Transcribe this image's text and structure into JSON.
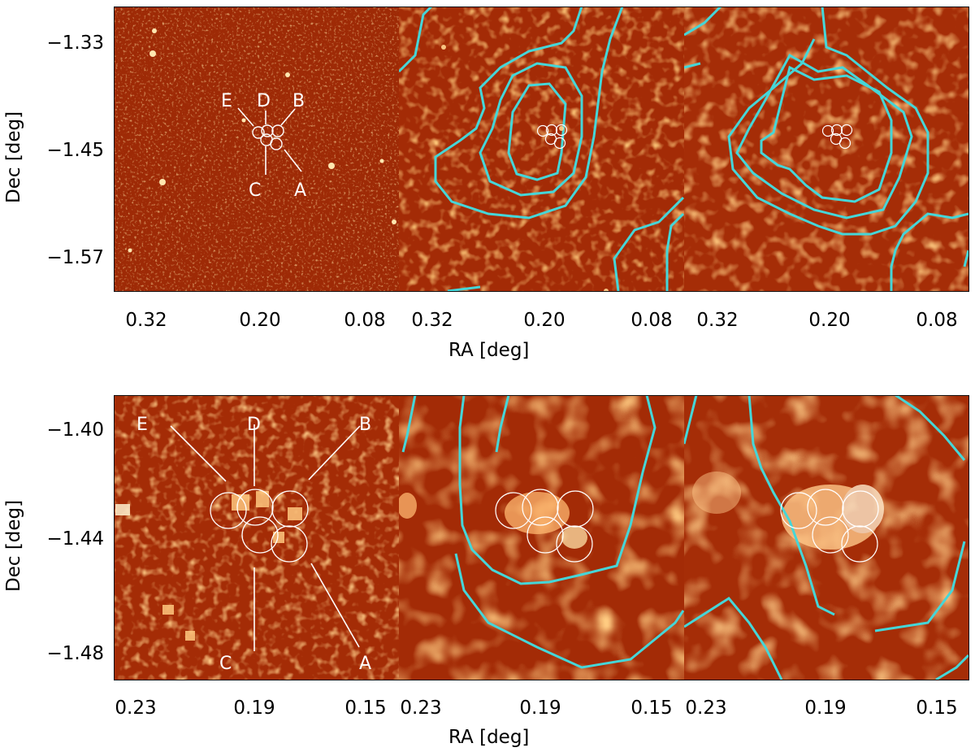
{
  "figure": {
    "top_row": {
      "dec_ticks": [
        "−1.33",
        "−1.45",
        "−1.57"
      ],
      "ra_ticks": [
        "0.32",
        "0.20",
        "0.08"
      ],
      "ra_label": "RA [deg]",
      "dec_label": "Dec [deg]",
      "source_labels": [
        "E",
        "D",
        "B",
        "C",
        "A"
      ]
    },
    "bottom_row": {
      "dec_ticks": [
        "−1.40",
        "−1.44",
        "−1.48"
      ],
      "ra_ticks": [
        "0.23",
        "0.19",
        "0.15"
      ],
      "ra_label": "RA [deg]",
      "dec_label": "Dec [deg]",
      "source_labels": [
        "E",
        "D",
        "B",
        "C",
        "A"
      ]
    },
    "colors": {
      "contour": "#45d6d8",
      "map_dark": "#6b0f00",
      "map_mid": "#b43a0a",
      "map_bright": "#ffd080",
      "marker": "#ffffff"
    }
  }
}
